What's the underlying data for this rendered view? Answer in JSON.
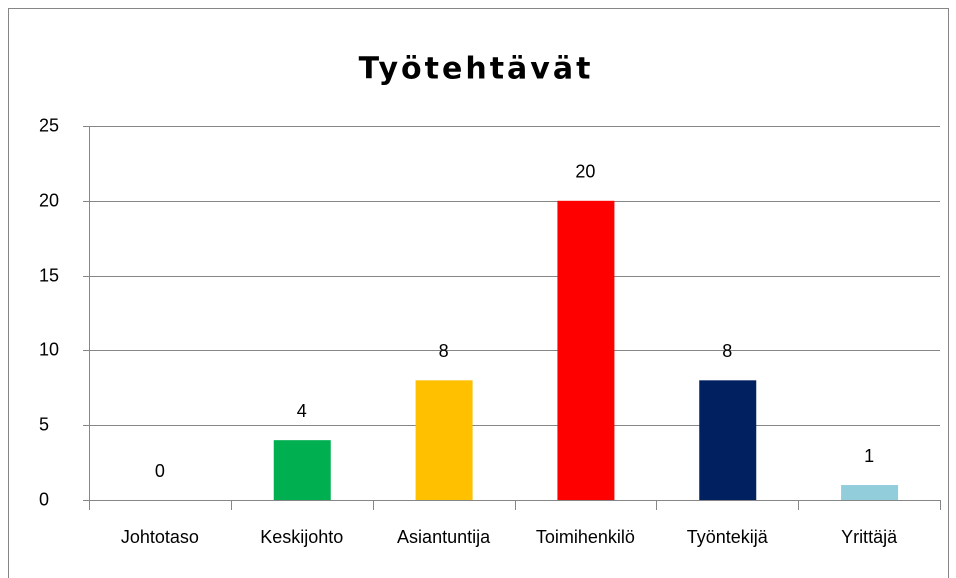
{
  "chart_data": {
    "type": "bar",
    "title": "Työtehtävät",
    "categories": [
      "Johtotaso",
      "Keskijohto",
      "Asiantuntija",
      "Toimihenkilö",
      "Työntekijä",
      "Yrittäjä"
    ],
    "values": [
      0,
      4,
      8,
      20,
      8,
      1
    ],
    "colors": [
      "#00b050",
      "#00b050",
      "#ffc000",
      "#ff0000",
      "#002060",
      "#92cddc"
    ],
    "ylim": [
      0,
      25
    ],
    "yticks": [
      0,
      5,
      10,
      15,
      20,
      25
    ],
    "grid": true
  }
}
